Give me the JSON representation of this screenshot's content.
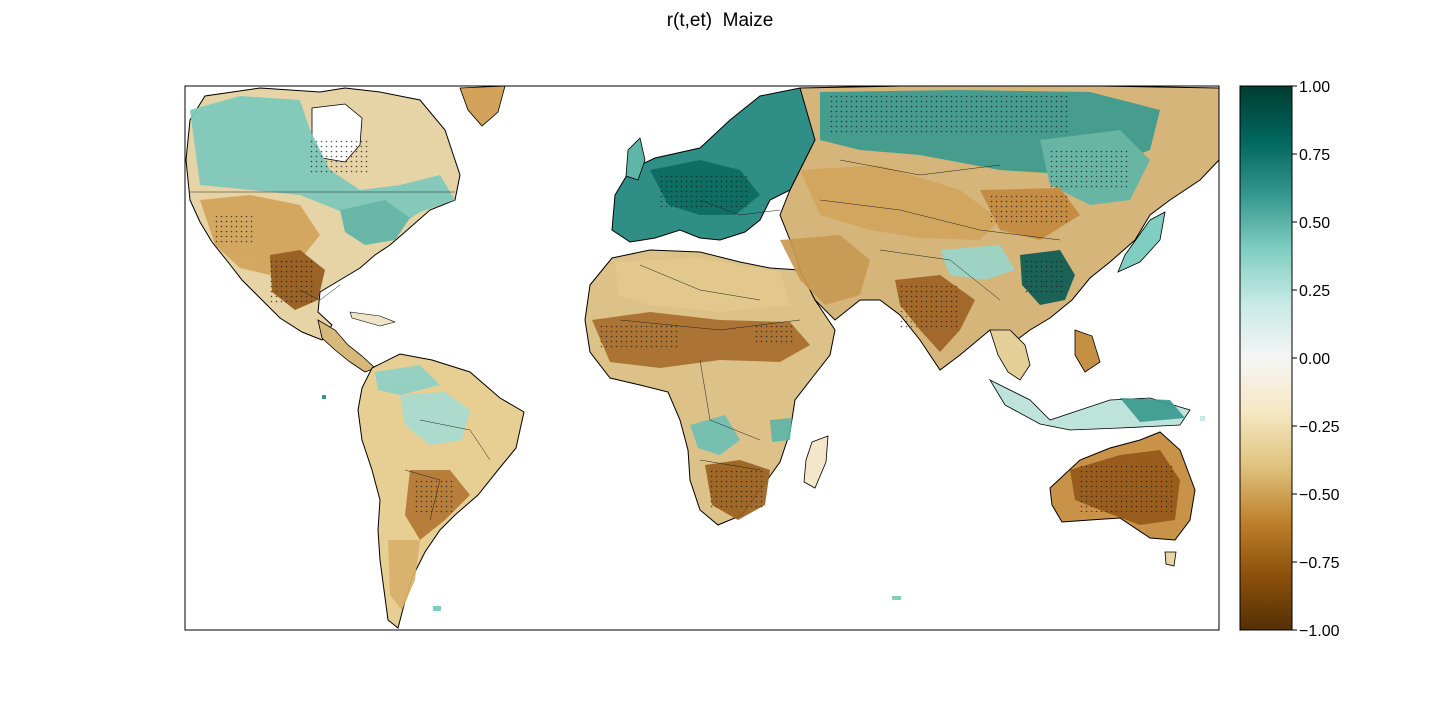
{
  "figure": {
    "title": "r(t,et)  Maize"
  },
  "colorbar": {
    "colormap": "BrBG",
    "range": [
      -1.0,
      1.0
    ],
    "ticks": [
      "1.00",
      "0.75",
      "0.50",
      "0.25",
      "0.00",
      "−0.25",
      "−0.50",
      "−0.75",
      "−1.00"
    ],
    "stops": [
      "#543005",
      "#8c510a",
      "#bf812d",
      "#dfc27d",
      "#f6e8c3",
      "#f5f5f5",
      "#c7eae5",
      "#80cdc1",
      "#35978f",
      "#01665e",
      "#003c30"
    ]
  },
  "map": {
    "projection": "equirectangular",
    "features": [
      "coastlines",
      "country borders",
      "stippling where significant"
    ],
    "regions": [
      {
        "name": "Canada",
        "r": 0.45
      },
      {
        "name": "Western USA",
        "r": -0.45
      },
      {
        "name": "Southern Great Plains",
        "r": -0.7
      },
      {
        "name": "Eastern USA",
        "r": 0.45
      },
      {
        "name": "Europe",
        "r": 0.75
      },
      {
        "name": "Central Asia",
        "r": -0.45
      },
      {
        "name": "Siberia",
        "r": 0.6
      },
      {
        "name": "India",
        "r": -0.6
      },
      {
        "name": "South-East China",
        "r": 0.8
      },
      {
        "name": "Sahel",
        "r": -0.55
      },
      {
        "name": "Southern Africa",
        "r": -0.6
      },
      {
        "name": "Amazon",
        "r": 0.25
      },
      {
        "name": "Southern South America",
        "r": -0.45
      },
      {
        "name": "Australia",
        "r": -0.6
      }
    ]
  }
}
